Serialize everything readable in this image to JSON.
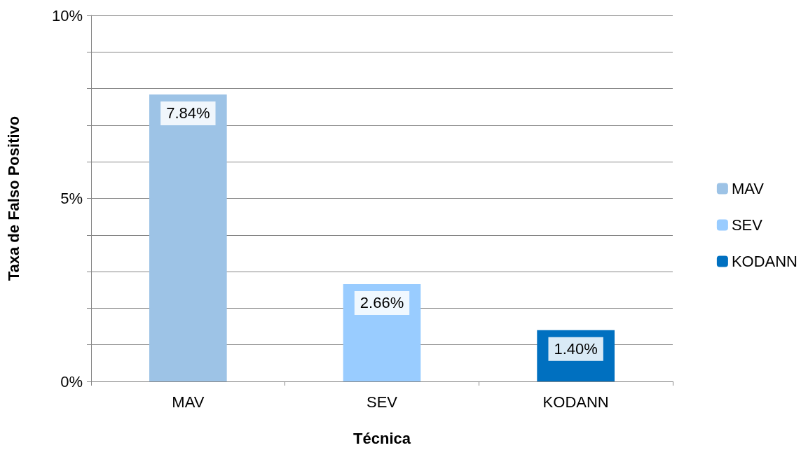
{
  "chart_data": {
    "type": "bar",
    "xlabel": "Técnica",
    "ylabel": "Taxa de Falso Positivo",
    "categories": [
      "MAV",
      "SEV",
      "KODANN"
    ],
    "series": [
      {
        "name": "MAV",
        "color": "#9dc3e6",
        "values": [
          7.84,
          null,
          null
        ],
        "value_labels": [
          "7.84%",
          null,
          null
        ]
      },
      {
        "name": "SEV",
        "color": "#99ccff",
        "values": [
          null,
          2.66,
          null
        ],
        "value_labels": [
          null,
          "2.66%",
          null
        ]
      },
      {
        "name": "KODANN",
        "color": "#0070c0",
        "values": [
          null,
          null,
          1.4
        ],
        "value_labels": [
          null,
          null,
          "1.40%"
        ]
      }
    ],
    "ylim": [
      0,
      10
    ],
    "yticks": [
      {
        "value": 0,
        "label": "0%"
      },
      {
        "value": 1,
        "label": null
      },
      {
        "value": 2,
        "label": null
      },
      {
        "value": 3,
        "label": null
      },
      {
        "value": 4,
        "label": null
      },
      {
        "value": 5,
        "label": "5%"
      },
      {
        "value": 6,
        "label": null
      },
      {
        "value": 7,
        "label": null
      },
      {
        "value": 8,
        "label": null
      },
      {
        "value": 9,
        "label": null
      },
      {
        "value": 10,
        "label": "10%"
      }
    ],
    "grid": "y",
    "legend": "right"
  }
}
